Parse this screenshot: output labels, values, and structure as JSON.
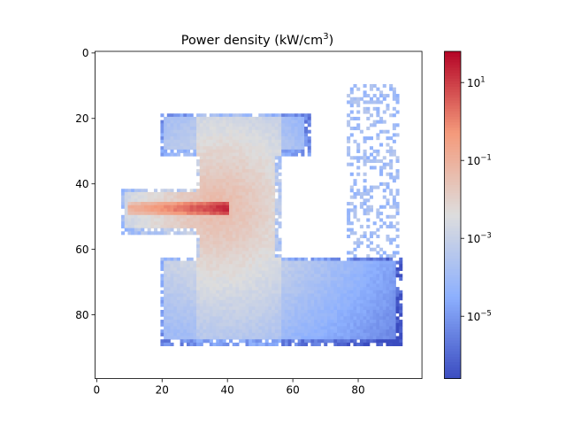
{
  "chart_data": {
    "type": "heatmap",
    "title": "Power density (kW/cm",
    "title_sup": "3",
    "title_end": ")",
    "xlabel": "",
    "ylabel": "",
    "xlim": [
      -0.5,
      99.5
    ],
    "ylim": [
      99.5,
      -0.5
    ],
    "xticks": [
      0,
      20,
      40,
      60,
      80
    ],
    "yticks": [
      0,
      20,
      40,
      60,
      80
    ],
    "colorscale": "coolwarm",
    "color_scale": "log",
    "colorbar": {
      "vmin_exp": -6.6,
      "vmax_exp": 1.8,
      "ticks": [
        {
          "base": "10",
          "exp": "1",
          "value_exp": 1
        },
        {
          "base": "10",
          "exp": "−1",
          "value_exp": -1
        },
        {
          "base": "10",
          "exp": "−3",
          "value_exp": -3
        },
        {
          "base": "10",
          "exp": "−5",
          "value_exp": -5
        }
      ]
    },
    "field": {
      "source": [
        37,
        47
      ],
      "beam": {
        "y": 47.5,
        "x_start": 10,
        "x_end": 40,
        "peak_log10": 1.6
      },
      "regions": [
        {
          "name": "left-arm",
          "x": [
            8,
            31
          ],
          "y": [
            42,
            55
          ]
        },
        {
          "name": "top-bar",
          "x": [
            20,
            65
          ],
          "y": [
            19,
            31
          ]
        },
        {
          "name": "trunk",
          "x": [
            31,
            56
          ],
          "y": [
            19,
            63
          ]
        },
        {
          "name": "base",
          "x": [
            20,
            93
          ],
          "y": [
            63,
            89
          ]
        },
        {
          "name": "right-scatter",
          "x": [
            77,
            92
          ],
          "y": [
            10,
            63
          ]
        }
      ]
    }
  }
}
